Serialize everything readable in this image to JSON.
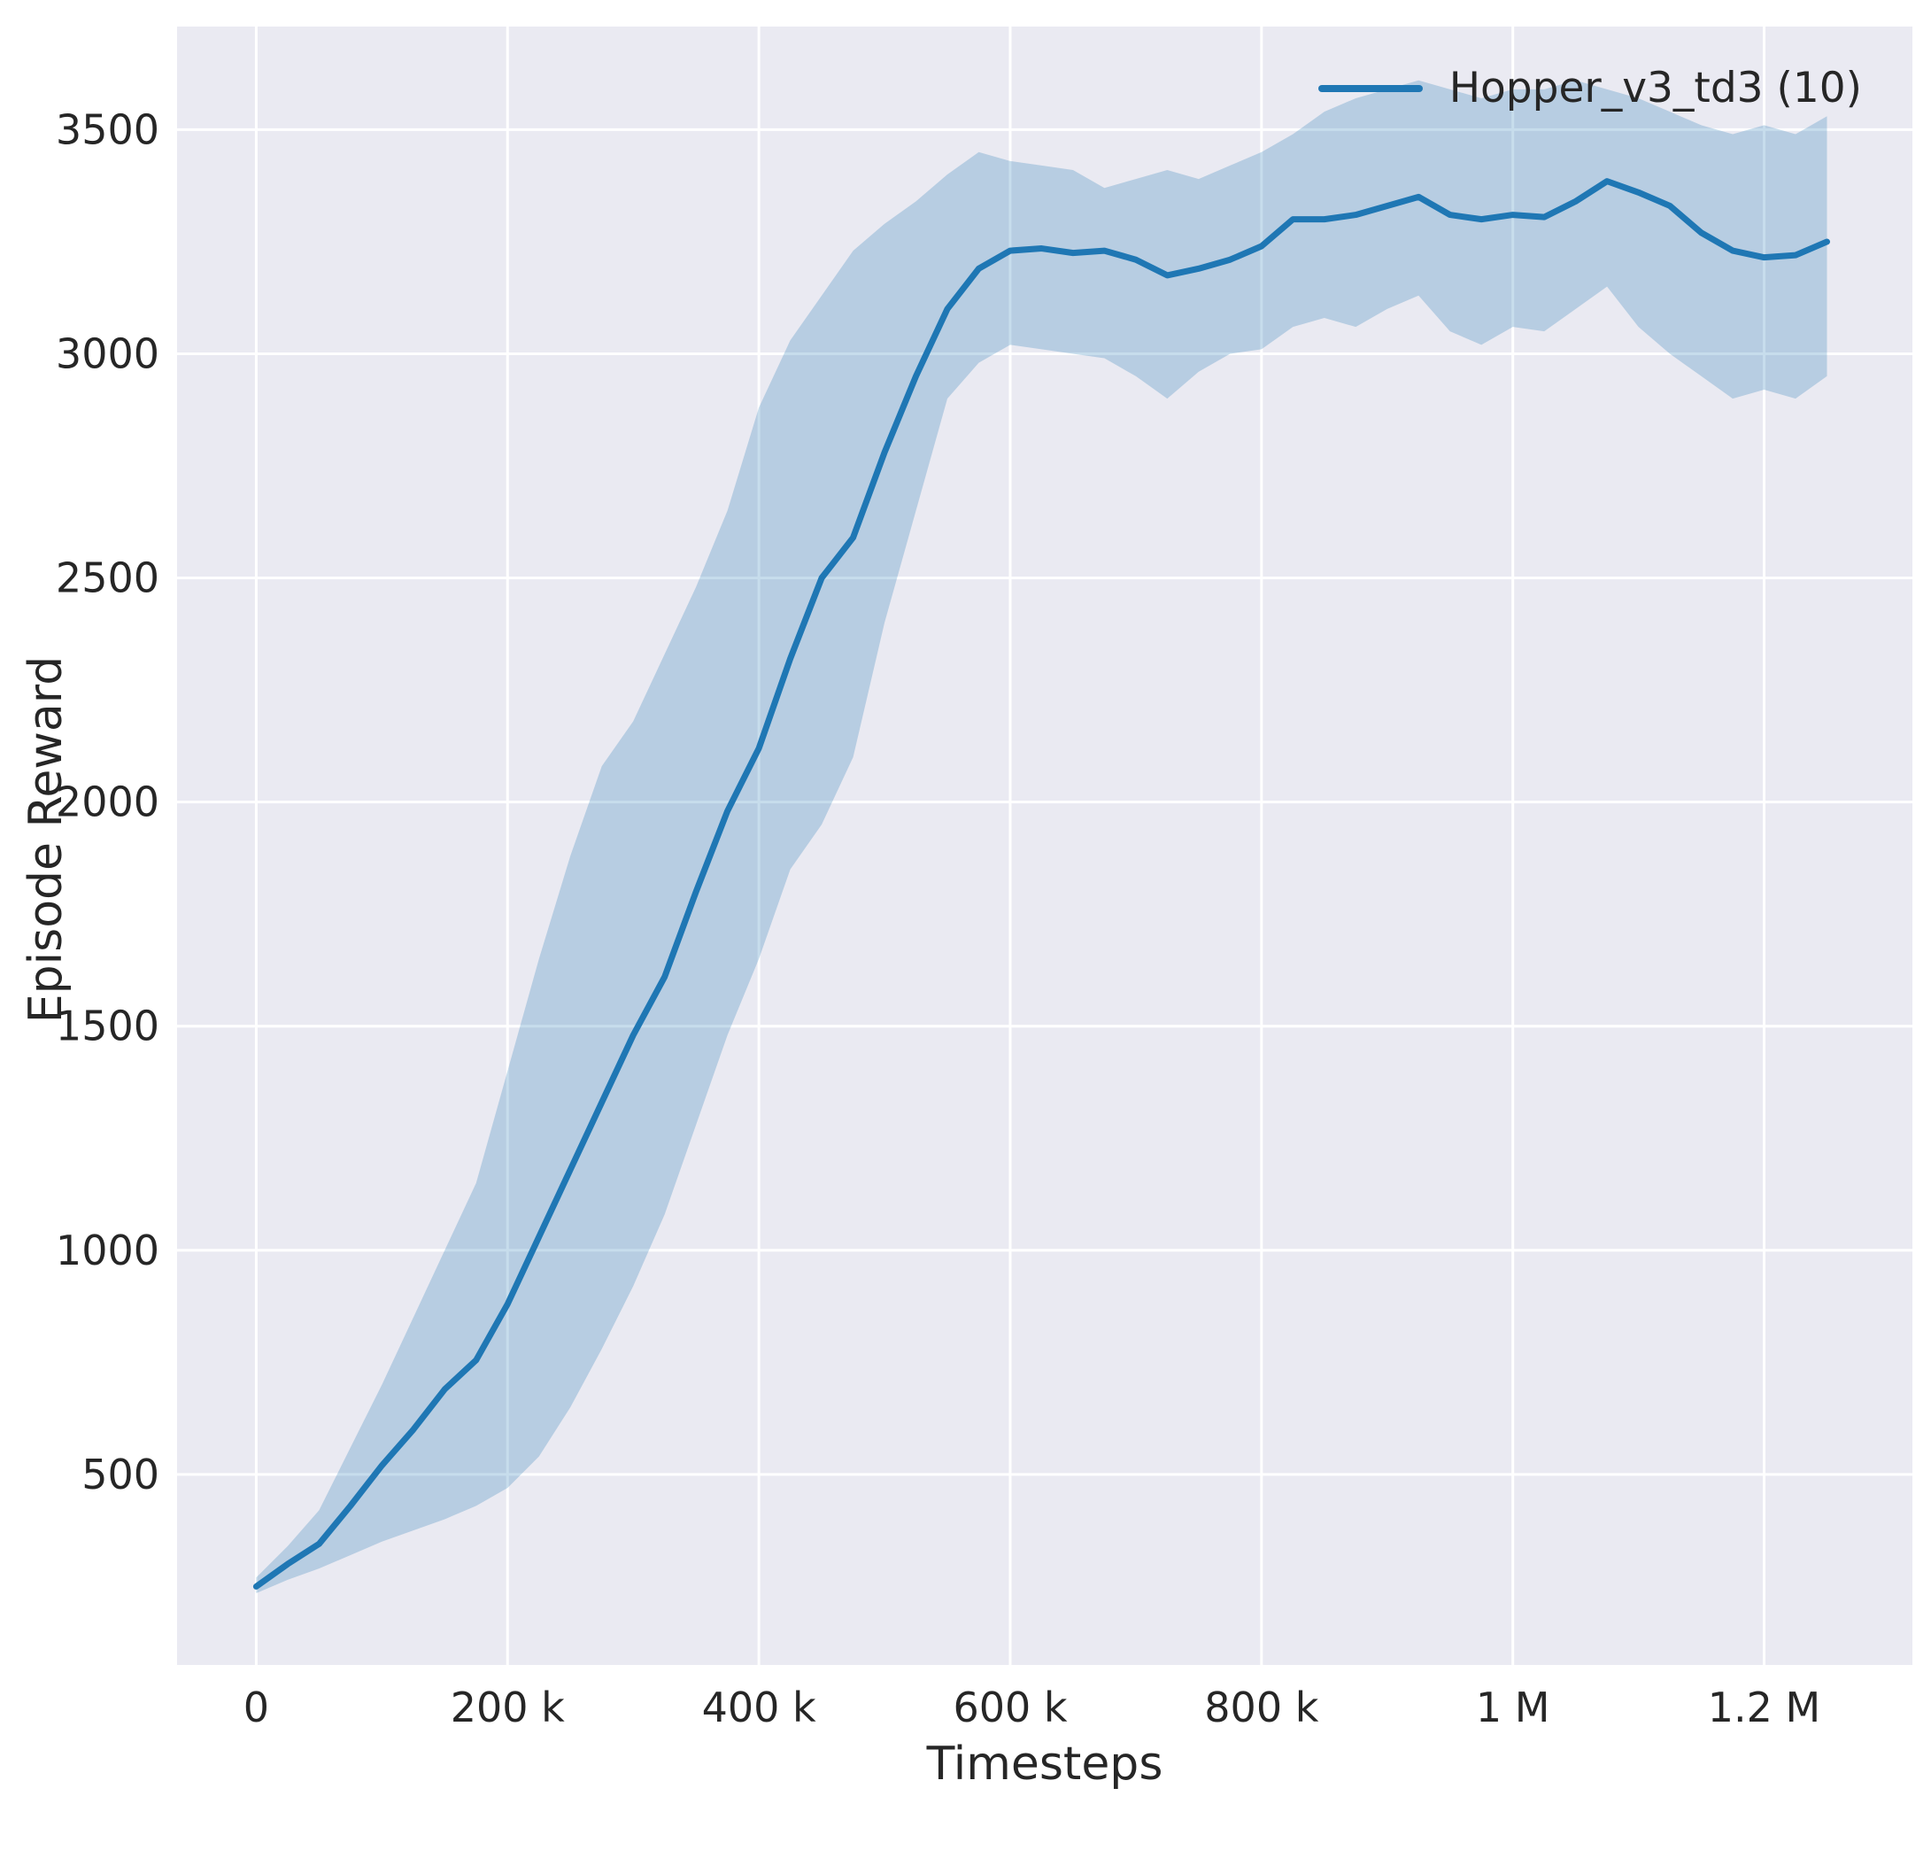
{
  "figure": {
    "background": "#ffffff",
    "axes_background": "#eaeaf2",
    "grid_color": "#ffffff",
    "text_color": "#262626",
    "line_color": "#1f77b4",
    "band_color": "#1f77b4",
    "band_opacity": 0.25
  },
  "chart_data": {
    "type": "line",
    "title": "",
    "xlabel": "Timesteps",
    "ylabel": "Episode Reward",
    "grid": true,
    "legend_position": "upper right",
    "legend": [
      {
        "label": "Hopper_v3_td3 (10)",
        "color": "#1f77b4"
      }
    ],
    "xlim": [
      -63000,
      1318000
    ],
    "ylim": [
      75,
      3730
    ],
    "xticks": {
      "values": [
        0,
        200000,
        400000,
        600000,
        800000,
        1000000,
        1200000
      ],
      "labels": [
        "0",
        "200 k",
        "400 k",
        "600 k",
        "800 k",
        "1 M",
        "1.2 M"
      ]
    },
    "yticks": {
      "values": [
        500,
        1000,
        1500,
        2000,
        2500,
        3000,
        3500
      ],
      "labels": [
        "500",
        "1000",
        "1500",
        "2000",
        "2500",
        "3000",
        "3500"
      ]
    },
    "series": [
      {
        "name": "Hopper_v3_td3 (10)",
        "x": [
          0,
          25000,
          50000,
          75000,
          100000,
          125000,
          150000,
          175000,
          200000,
          225000,
          250000,
          275000,
          300000,
          325000,
          350000,
          375000,
          400000,
          425000,
          450000,
          475000,
          500000,
          525000,
          550000,
          575000,
          600000,
          625000,
          650000,
          675000,
          700000,
          725000,
          750000,
          775000,
          800000,
          825000,
          850000,
          875000,
          900000,
          925000,
          950000,
          975000,
          1000000,
          1025000,
          1050000,
          1075000,
          1100000,
          1125000,
          1150000,
          1175000,
          1200000,
          1225000,
          1250000
        ],
        "mean": [
          250,
          300,
          345,
          430,
          520,
          600,
          690,
          755,
          880,
          1030,
          1180,
          1330,
          1480,
          1610,
          1800,
          1980,
          2120,
          2320,
          2500,
          2590,
          2780,
          2950,
          3100,
          3190,
          3230,
          3235,
          3225,
          3230,
          3210,
          3175,
          3190,
          3210,
          3240,
          3300,
          3300,
          3310,
          3330,
          3350,
          3310,
          3300,
          3310,
          3305,
          3340,
          3385,
          3360,
          3330,
          3270,
          3230,
          3215,
          3220,
          3250
        ],
        "lower": [
          235,
          265,
          290,
          320,
          350,
          375,
          400,
          430,
          470,
          540,
          650,
          780,
          920,
          1080,
          1280,
          1480,
          1650,
          1850,
          1950,
          2100,
          2400,
          2650,
          2900,
          2980,
          3020,
          3010,
          3000,
          2990,
          2950,
          2900,
          2960,
          3000,
          3010,
          3060,
          3080,
          3060,
          3100,
          3130,
          3050,
          3020,
          3060,
          3050,
          3100,
          3150,
          3060,
          3000,
          2950,
          2900,
          2920,
          2900,
          2950
        ],
        "upper": [
          270,
          340,
          420,
          560,
          700,
          850,
          1000,
          1150,
          1400,
          1650,
          1880,
          2080,
          2180,
          2330,
          2480,
          2650,
          2880,
          3030,
          3130,
          3230,
          3290,
          3340,
          3400,
          3450,
          3430,
          3420,
          3410,
          3370,
          3390,
          3410,
          3390,
          3420,
          3450,
          3490,
          3540,
          3570,
          3590,
          3610,
          3590,
          3570,
          3590,
          3590,
          3610,
          3590,
          3570,
          3540,
          3510,
          3490,
          3510,
          3490,
          3530
        ]
      }
    ]
  }
}
